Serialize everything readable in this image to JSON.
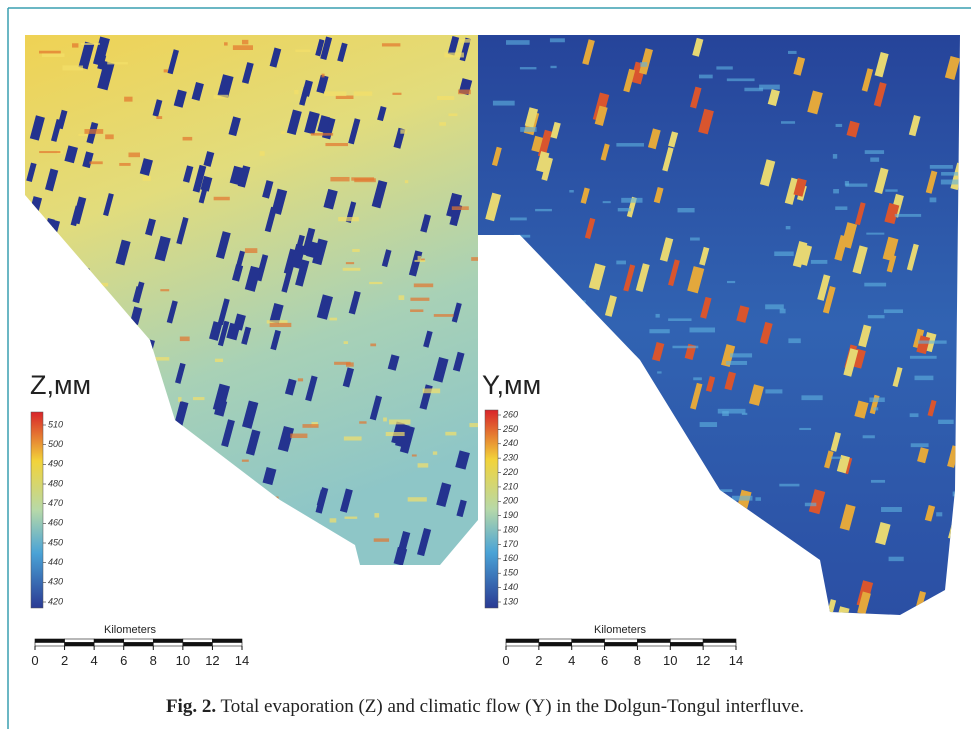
{
  "figure": {
    "left_map": {
      "legend_title": "Z,мм",
      "legend_ticks": [
        510,
        500,
        490,
        480,
        470,
        460,
        450,
        440,
        430,
        420
      ],
      "scale_title": "Kilometers",
      "scale_ticks": [
        0,
        2,
        4,
        6,
        8,
        10,
        12,
        14
      ]
    },
    "right_map": {
      "legend_title": "Y,мм",
      "legend_ticks": [
        260,
        250,
        240,
        230,
        220,
        210,
        200,
        190,
        180,
        170,
        160,
        150,
        140,
        130
      ],
      "scale_title": "Kilometers",
      "scale_ticks": [
        0,
        2,
        4,
        6,
        8,
        10,
        12,
        14
      ]
    },
    "caption": {
      "label": "Fig. 2.",
      "text": "Total evaporation (Z) and climatic flow (Y) in the Dolgun-Tongul interfluve."
    }
  }
}
